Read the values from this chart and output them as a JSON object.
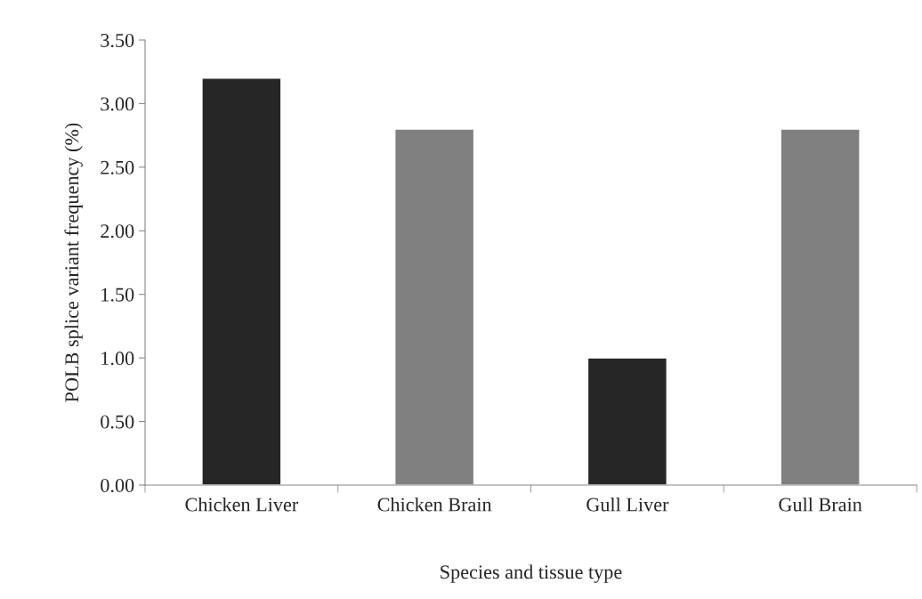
{
  "chart_data": {
    "type": "bar",
    "categories": [
      "Chicken Liver",
      "Chicken Brain",
      "Gull Liver",
      "Gull Brain"
    ],
    "values": [
      3.2,
      2.8,
      1.0,
      2.8
    ],
    "colors": [
      "#262626",
      "#808080",
      "#262626",
      "#808080"
    ],
    "xlabel": "Species and tissue type",
    "ylabel": "POLB splice variant frequency (%)",
    "ylim": [
      0,
      3.5
    ],
    "yticks": [
      {
        "value": 0,
        "label": "0.00"
      },
      {
        "value": 0.5,
        "label": "0.50"
      },
      {
        "value": 1.0,
        "label": "1.00"
      },
      {
        "value": 1.5,
        "label": "1.50"
      },
      {
        "value": 2.0,
        "label": "2.00"
      },
      {
        "value": 2.5,
        "label": "2.50"
      },
      {
        "value": 3.0,
        "label": "3.00"
      },
      {
        "value": 3.5,
        "label": "3.50"
      }
    ],
    "grid": false,
    "legend": false
  }
}
